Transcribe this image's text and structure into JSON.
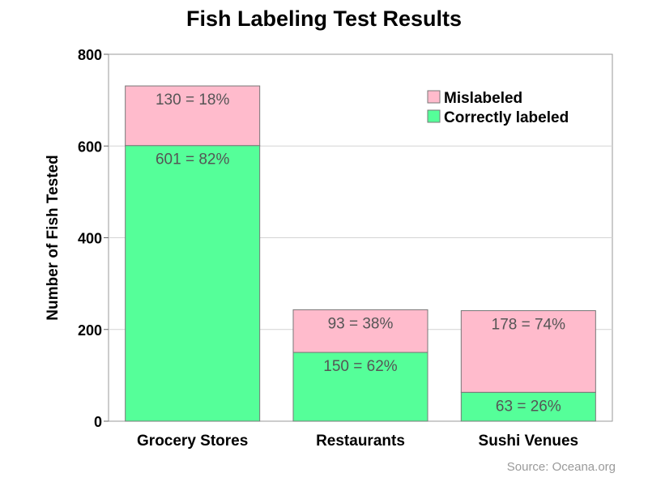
{
  "chart_data": {
    "type": "bar",
    "stacked": true,
    "title": "Fish Labeling Test Results",
    "ylabel": "Number of Fish Tested",
    "xlabel": "",
    "ylim": [
      0,
      800
    ],
    "yticks": [
      0,
      200,
      400,
      600,
      800
    ],
    "grid": true,
    "legend_position": "top-right",
    "categories": [
      "Grocery Stores",
      "Restaurants",
      "Sushi Venues"
    ],
    "series": [
      {
        "name": "Correctly labeled",
        "color": "#55ff99",
        "values": [
          601,
          150,
          63
        ],
        "labels": [
          "601 = 82%",
          "150 = 62%",
          "63 = 26%"
        ]
      },
      {
        "name": "Mislabeled",
        "color": "#ffbbcc",
        "values": [
          130,
          93,
          178
        ],
        "labels": [
          "130 = 18%",
          "93 = 38%",
          "178 = 74%"
        ]
      }
    ],
    "legend_order": [
      1,
      0
    ],
    "source": "Source: Oceana.org"
  }
}
